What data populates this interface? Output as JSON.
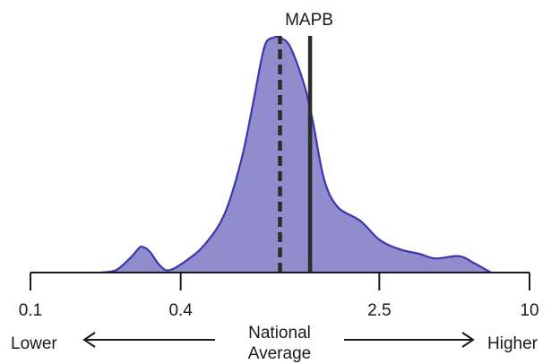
{
  "chart_data": {
    "type": "area",
    "title": "",
    "xscale": "log",
    "xlim": [
      0.1,
      10
    ],
    "ylim": [
      0,
      1
    ],
    "xticks": [
      {
        "value": 0.1,
        "label": "0.1"
      },
      {
        "value": 0.4,
        "label": "0.4"
      },
      {
        "value": 2.5,
        "label": "2.5"
      },
      {
        "value": 10,
        "label": "10"
      }
    ],
    "series": [
      {
        "density": [
          [
            0.19,
            0.0
          ],
          [
            0.22,
            0.01
          ],
          [
            0.25,
            0.06
          ],
          [
            0.27,
            0.1
          ],
          [
            0.28,
            0.11
          ],
          [
            0.3,
            0.09
          ],
          [
            0.33,
            0.03
          ],
          [
            0.36,
            0.01
          ],
          [
            0.42,
            0.05
          ],
          [
            0.5,
            0.12
          ],
          [
            0.6,
            0.25
          ],
          [
            0.7,
            0.48
          ],
          [
            0.78,
            0.72
          ],
          [
            0.84,
            0.9
          ],
          [
            0.88,
            0.98
          ],
          [
            0.94,
            1.0
          ],
          [
            1.0,
            1.0
          ],
          [
            1.1,
            0.96
          ],
          [
            1.25,
            0.8
          ],
          [
            1.35,
            0.65
          ],
          [
            1.5,
            0.4
          ],
          [
            1.7,
            0.28
          ],
          [
            2.1,
            0.22
          ],
          [
            2.5,
            0.14
          ],
          [
            3.0,
            0.1
          ],
          [
            3.6,
            0.08
          ],
          [
            4.2,
            0.06
          ],
          [
            5.2,
            0.07
          ],
          [
            6.0,
            0.04
          ],
          [
            7.0,
            0.0
          ]
        ]
      }
    ],
    "reference_lines": [
      {
        "label": "",
        "x": 1.0,
        "style": "dashed"
      },
      {
        "label": "MAPB",
        "x": 1.32,
        "style": "solid"
      }
    ],
    "annotations": {
      "lower": "Lower",
      "higher": "Higher",
      "center_line1": "National",
      "center_line2": "Average"
    },
    "colors": {
      "fill": "#8f8dcb",
      "stroke": "#3b36b4",
      "axis": "#1a1a1a",
      "lines": "#2b2b2b"
    }
  }
}
